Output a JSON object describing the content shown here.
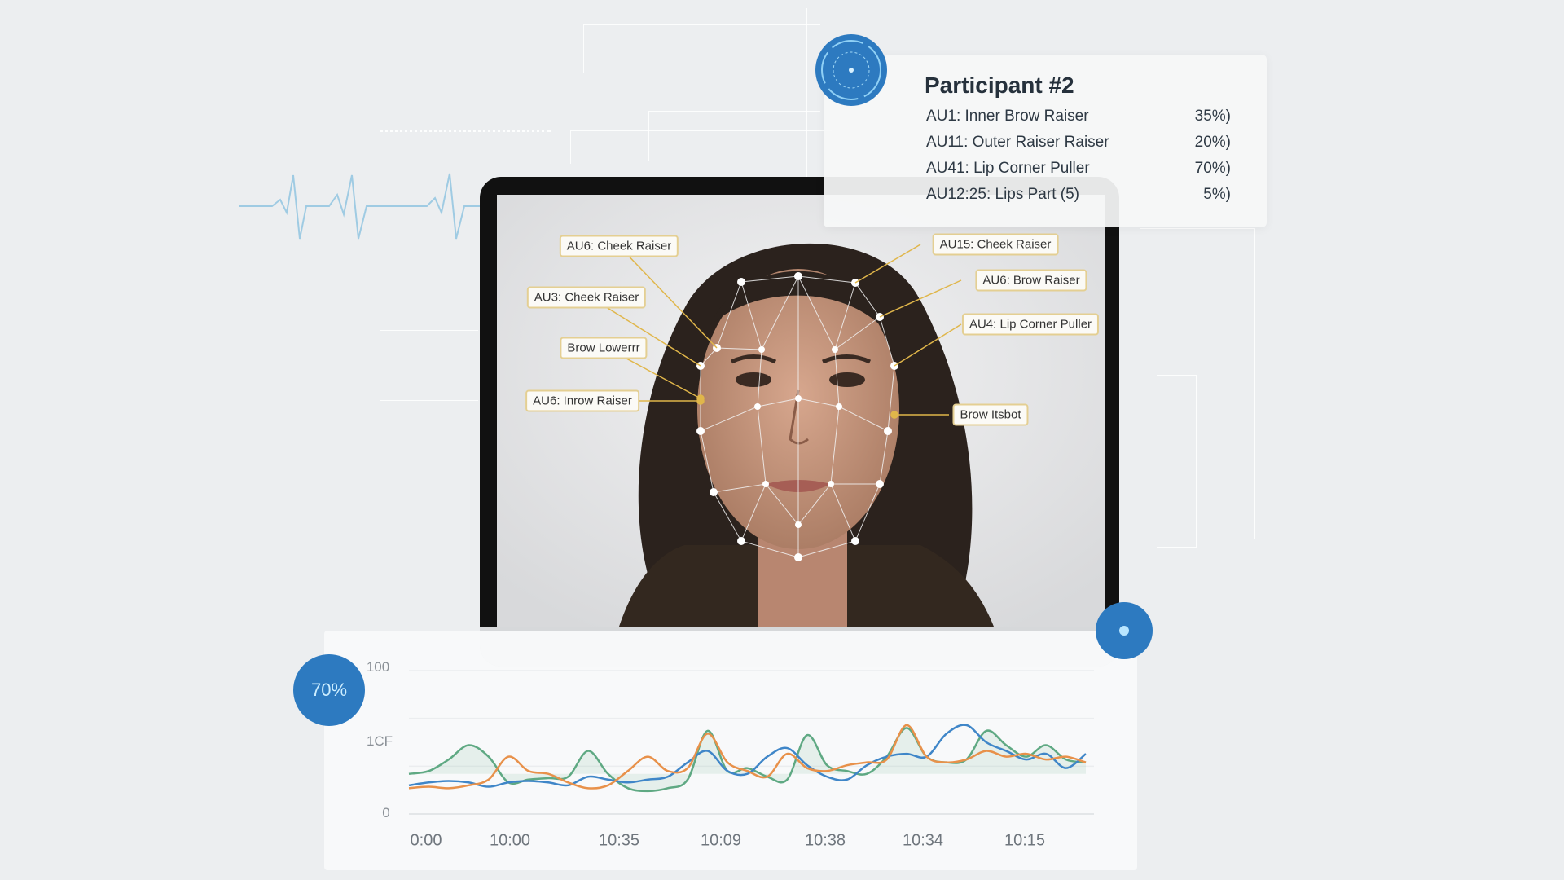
{
  "participant_card": {
    "title": "Participant #2",
    "rows": [
      {
        "label": "AU1: Inner Brow Raiser",
        "value": "35%)"
      },
      {
        "label": "AU11: Outer Raiser Raiser",
        "value": "20%)"
      },
      {
        "label": "AU41: Lip Corner Puller",
        "value": "70%)"
      },
      {
        "label": "AU12:25: Lips Part (5)",
        "value": "5%)"
      }
    ]
  },
  "face_labels": {
    "left": [
      "AU6: Cheek Raiser",
      "AU3: Cheek Raiser",
      "Brow Lowerrr",
      "AU6: Inrow Raiser"
    ],
    "right": [
      "AU15: Cheek Raiser",
      "AU6: Brow Raiser",
      "AU4: Lip Corner Puller",
      "Brow Itsbot"
    ]
  },
  "badge": {
    "value": "70%"
  },
  "colors": {
    "accent": "#2d7ac0",
    "blue": "#3f86c8",
    "orange": "#e8914a",
    "green": "#5fa983",
    "tag_border": "#e4cf92"
  },
  "icons": {
    "top_circle": "radar-target-icon",
    "bottom_dot": "record-dot-icon",
    "ecg": "heartbeat-line-icon"
  },
  "chart_data": {
    "type": "line",
    "y_tick_labels": [
      "100",
      "1CF",
      "0"
    ],
    "x_tick_labels": [
      "0:00",
      "10:00",
      "10:35",
      "10:09",
      "10:38",
      "10:34",
      "10:15"
    ],
    "ylim": [
      0,
      100
    ],
    "grid": true,
    "series": [
      {
        "color": "#5fa983",
        "fill": true,
        "values": [
          28,
          30,
          38,
          48,
          40,
          22,
          24,
          25,
          26,
          44,
          28,
          18,
          16,
          18,
          24,
          58,
          30,
          32,
          26,
          24,
          55,
          34,
          30,
          28,
          40,
          60,
          40,
          36,
          38,
          58,
          48,
          40,
          48,
          38,
          36
        ]
      },
      {
        "color": "#3f86c8",
        "values": [
          20,
          22,
          23,
          22,
          19,
          22,
          23,
          22,
          20,
          26,
          24,
          22,
          24,
          26,
          36,
          44,
          30,
          28,
          40,
          46,
          34,
          26,
          24,
          34,
          40,
          42,
          40,
          56,
          62,
          50,
          44,
          38,
          42,
          32,
          42
        ]
      },
      {
        "color": "#e8914a",
        "values": [
          18,
          19,
          18,
          20,
          24,
          40,
          30,
          28,
          22,
          18,
          20,
          30,
          40,
          30,
          32,
          56,
          36,
          30,
          26,
          42,
          32,
          30,
          34,
          36,
          38,
          62,
          40,
          36,
          38,
          44,
          40,
          42,
          38,
          40,
          36
        ]
      }
    ]
  }
}
